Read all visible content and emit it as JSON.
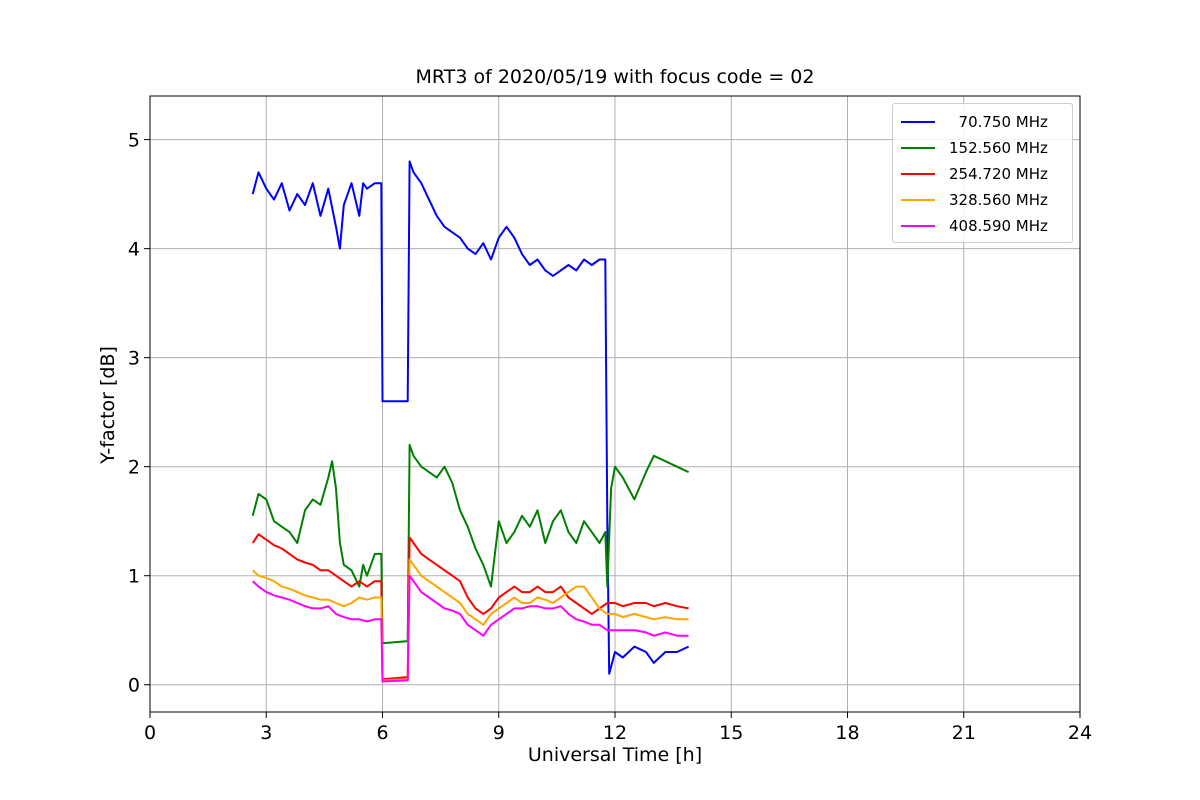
{
  "chart_data": {
    "type": "line",
    "title": "MRT3 of 2020/05/19 with focus code = 02",
    "xlabel": "Universal Time [h]",
    "ylabel": "Y-factor [dB]",
    "xlim": [
      0,
      24
    ],
    "ylim": [
      -0.25,
      5.4
    ],
    "xticks": [
      "0",
      "3",
      "6",
      "9",
      "12",
      "15",
      "18",
      "21",
      "24"
    ],
    "yticks": [
      "0",
      "1",
      "2",
      "3",
      "4",
      "5"
    ],
    "grid": true,
    "legend_position": "top-right",
    "series": [
      {
        "name": "  70.750 MHz",
        "color": "#0000ff",
        "x": [
          2.65,
          2.8,
          3.0,
          3.2,
          3.4,
          3.6,
          3.8,
          4.0,
          4.2,
          4.4,
          4.6,
          4.8,
          4.9,
          5.0,
          5.2,
          5.4,
          5.5,
          5.6,
          5.8,
          5.97,
          6.0,
          6.65,
          6.7,
          6.8,
          7.0,
          7.2,
          7.4,
          7.6,
          7.8,
          8.0,
          8.2,
          8.4,
          8.6,
          8.8,
          9.0,
          9.2,
          9.4,
          9.6,
          9.8,
          10.0,
          10.2,
          10.4,
          10.6,
          10.8,
          11.0,
          11.2,
          11.4,
          11.6,
          11.75,
          11.8,
          11.85,
          12.0,
          12.2,
          12.5,
          12.8,
          13.0,
          13.3,
          13.6,
          13.9
        ],
        "y": [
          4.5,
          4.7,
          4.55,
          4.45,
          4.6,
          4.35,
          4.5,
          4.4,
          4.6,
          4.3,
          4.55,
          4.2,
          4.0,
          4.4,
          4.6,
          4.3,
          4.6,
          4.55,
          4.6,
          4.6,
          2.6,
          2.6,
          4.8,
          4.7,
          4.6,
          4.45,
          4.3,
          4.2,
          4.15,
          4.1,
          4.0,
          3.95,
          4.05,
          3.9,
          4.1,
          4.2,
          4.1,
          3.95,
          3.85,
          3.9,
          3.8,
          3.75,
          3.8,
          3.85,
          3.8,
          3.9,
          3.85,
          3.9,
          3.9,
          1.5,
          0.1,
          0.3,
          0.25,
          0.35,
          0.3,
          0.2,
          0.3,
          0.3,
          0.35
        ]
      },
      {
        "name": "152.560 MHz",
        "color": "#008000",
        "x": [
          2.65,
          2.8,
          3.0,
          3.2,
          3.4,
          3.6,
          3.8,
          4.0,
          4.2,
          4.4,
          4.6,
          4.7,
          4.8,
          4.9,
          5.0,
          5.2,
          5.4,
          5.5,
          5.6,
          5.8,
          5.97,
          6.0,
          6.65,
          6.7,
          6.8,
          7.0,
          7.2,
          7.4,
          7.6,
          7.8,
          8.0,
          8.2,
          8.4,
          8.6,
          8.8,
          9.0,
          9.2,
          9.4,
          9.6,
          9.8,
          10.0,
          10.2,
          10.4,
          10.6,
          10.8,
          11.0,
          11.2,
          11.4,
          11.6,
          11.75,
          11.8,
          11.9,
          12.0,
          12.2,
          12.5,
          12.8,
          13.0,
          13.3,
          13.6,
          13.9
        ],
        "y": [
          1.55,
          1.75,
          1.7,
          1.5,
          1.45,
          1.4,
          1.3,
          1.6,
          1.7,
          1.65,
          1.9,
          2.05,
          1.8,
          1.3,
          1.1,
          1.05,
          0.9,
          1.1,
          1.0,
          1.2,
          1.2,
          0.38,
          0.4,
          2.2,
          2.1,
          2.0,
          1.95,
          1.9,
          2.0,
          1.85,
          1.6,
          1.45,
          1.25,
          1.1,
          0.9,
          1.5,
          1.3,
          1.4,
          1.55,
          1.45,
          1.6,
          1.3,
          1.5,
          1.6,
          1.4,
          1.3,
          1.5,
          1.4,
          1.3,
          1.4,
          0.9,
          1.8,
          2.0,
          1.9,
          1.7,
          1.95,
          2.1,
          2.05,
          2.0,
          1.95
        ]
      },
      {
        "name": "254.720 MHz",
        "color": "#ff0000",
        "x": [
          2.65,
          2.8,
          3.0,
          3.2,
          3.4,
          3.6,
          3.8,
          4.0,
          4.2,
          4.4,
          4.6,
          4.8,
          5.0,
          5.2,
          5.4,
          5.6,
          5.8,
          5.97,
          6.0,
          6.65,
          6.7,
          6.8,
          7.0,
          7.2,
          7.4,
          7.6,
          7.8,
          8.0,
          8.2,
          8.4,
          8.6,
          8.8,
          9.0,
          9.2,
          9.4,
          9.6,
          9.8,
          10.0,
          10.2,
          10.4,
          10.6,
          10.8,
          11.0,
          11.2,
          11.4,
          11.6,
          11.8,
          12.0,
          12.2,
          12.5,
          12.8,
          13.0,
          13.3,
          13.6,
          13.9
        ],
        "y": [
          1.3,
          1.38,
          1.33,
          1.28,
          1.25,
          1.2,
          1.15,
          1.12,
          1.1,
          1.05,
          1.05,
          1.0,
          0.95,
          0.9,
          0.95,
          0.9,
          0.95,
          0.95,
          0.05,
          0.07,
          1.35,
          1.3,
          1.2,
          1.15,
          1.1,
          1.05,
          1.0,
          0.95,
          0.8,
          0.7,
          0.65,
          0.7,
          0.8,
          0.85,
          0.9,
          0.85,
          0.85,
          0.9,
          0.85,
          0.85,
          0.9,
          0.8,
          0.75,
          0.7,
          0.65,
          0.7,
          0.75,
          0.75,
          0.72,
          0.75,
          0.75,
          0.72,
          0.75,
          0.72,
          0.7
        ]
      },
      {
        "name": "328.560 MHz",
        "color": "#ffa500",
        "x": [
          2.65,
          2.8,
          3.0,
          3.2,
          3.4,
          3.6,
          3.8,
          4.0,
          4.2,
          4.4,
          4.6,
          4.8,
          5.0,
          5.2,
          5.4,
          5.6,
          5.8,
          5.97,
          6.0,
          6.65,
          6.7,
          6.8,
          7.0,
          7.2,
          7.4,
          7.6,
          7.8,
          8.0,
          8.2,
          8.4,
          8.6,
          8.8,
          9.0,
          9.2,
          9.4,
          9.6,
          9.8,
          10.0,
          10.2,
          10.4,
          10.6,
          10.8,
          11.0,
          11.2,
          11.4,
          11.6,
          11.8,
          12.0,
          12.2,
          12.5,
          12.8,
          13.0,
          13.3,
          13.6,
          13.9
        ],
        "y": [
          1.05,
          1.0,
          0.98,
          0.95,
          0.9,
          0.88,
          0.85,
          0.82,
          0.8,
          0.78,
          0.78,
          0.75,
          0.72,
          0.75,
          0.8,
          0.78,
          0.8,
          0.8,
          0.04,
          0.05,
          1.15,
          1.1,
          1.0,
          0.95,
          0.9,
          0.85,
          0.8,
          0.75,
          0.65,
          0.6,
          0.55,
          0.65,
          0.7,
          0.75,
          0.8,
          0.75,
          0.75,
          0.8,
          0.78,
          0.75,
          0.8,
          0.85,
          0.9,
          0.9,
          0.8,
          0.7,
          0.65,
          0.65,
          0.62,
          0.65,
          0.62,
          0.6,
          0.62,
          0.6,
          0.6
        ]
      },
      {
        "name": "408.590 MHz",
        "color": "#ff00ff",
        "x": [
          2.65,
          2.8,
          3.0,
          3.2,
          3.4,
          3.6,
          3.8,
          4.0,
          4.2,
          4.4,
          4.6,
          4.8,
          5.0,
          5.2,
          5.4,
          5.6,
          5.8,
          5.97,
          6.0,
          6.65,
          6.7,
          6.8,
          7.0,
          7.2,
          7.4,
          7.6,
          7.8,
          8.0,
          8.2,
          8.4,
          8.6,
          8.8,
          9.0,
          9.2,
          9.4,
          9.6,
          9.8,
          10.0,
          10.2,
          10.4,
          10.6,
          10.8,
          11.0,
          11.2,
          11.4,
          11.6,
          11.8,
          12.0,
          12.2,
          12.5,
          12.8,
          13.0,
          13.3,
          13.6,
          13.9
        ],
        "y": [
          0.95,
          0.9,
          0.85,
          0.82,
          0.8,
          0.78,
          0.75,
          0.72,
          0.7,
          0.7,
          0.72,
          0.65,
          0.62,
          0.6,
          0.6,
          0.58,
          0.6,
          0.6,
          0.03,
          0.04,
          1.0,
          0.95,
          0.85,
          0.8,
          0.75,
          0.7,
          0.68,
          0.65,
          0.55,
          0.5,
          0.45,
          0.55,
          0.6,
          0.65,
          0.7,
          0.7,
          0.72,
          0.72,
          0.7,
          0.7,
          0.72,
          0.65,
          0.6,
          0.58,
          0.55,
          0.55,
          0.5,
          0.5,
          0.5,
          0.5,
          0.48,
          0.45,
          0.48,
          0.45,
          0.45
        ]
      }
    ]
  }
}
